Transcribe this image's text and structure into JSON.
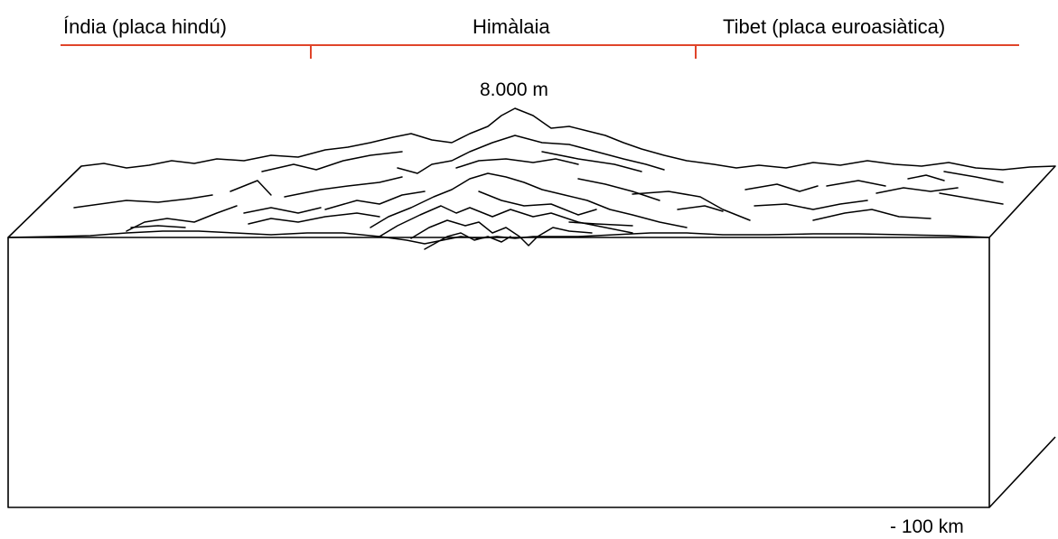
{
  "labels": {
    "india": "Índia (placa hindú)",
    "himalaya": "Himàlaia",
    "tibet": "Tibet (placa euroasiàtica)",
    "peak_height": "8.000 m",
    "depth": "- 100 km"
  },
  "colors": {
    "region_bar": "#e0442a",
    "outline": "#000000",
    "text": "#000000"
  }
}
